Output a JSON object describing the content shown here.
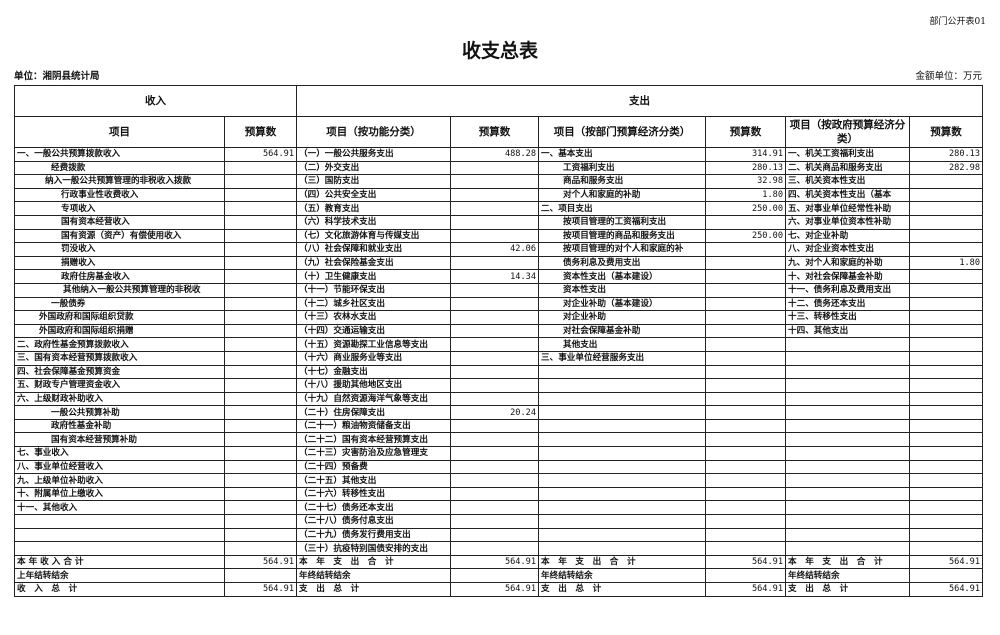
{
  "doc_code": "部门公开表01",
  "title": "收支总表",
  "unit": "单位：湘阴县统计局",
  "money_unit": "金额单位：万元",
  "header": {
    "income": "收入",
    "expense": "支出",
    "cols": [
      "项目",
      "预算数",
      "项目（按功能分类）",
      "预算数",
      "项目（按部门预算经济分类）",
      "预算数",
      "项目（按政府预算经济分类）",
      "预算数"
    ]
  },
  "rows": [
    [
      "一、一般公共预算拨款收入",
      "564.91",
      "（一）一般公共服务支出",
      "488.28",
      "一、基本支出",
      "314.91",
      "一、机关工资福利支出",
      "280.13"
    ],
    [
      "经费拨款",
      "",
      "（二）外交支出",
      "",
      "工资福利支出",
      "280.13",
      "二、机关商品和服务支出",
      "282.98"
    ],
    [
      "纳入一般公共预算管理的非税收入拨款",
      "",
      "（三）国防支出",
      "",
      "商品和服务支出",
      "32.98",
      "三、机关资本性支出",
      ""
    ],
    [
      "行政事业性收费收入",
      "",
      "（四）公共安全支出",
      "",
      "对个人和家庭的补助",
      "1.80",
      "四、机关资本性支出（基本",
      ""
    ],
    [
      "专项收入",
      "",
      "（五）教育支出",
      "",
      "二、项目支出",
      "250.00",
      "五、对事业单位经常性补助",
      ""
    ],
    [
      "国有资本经营收入",
      "",
      "（六）科学技术支出",
      "",
      "按项目管理的工资福利支出",
      "",
      "六、对事业单位资本性补助",
      ""
    ],
    [
      "国有资源（资产）有偿使用收入",
      "",
      "（七）文化旅游体育与传媒支出",
      "",
      "按项目管理的商品和服务支出",
      "250.00",
      "七、对企业补助",
      ""
    ],
    [
      "罚没收入",
      "",
      "（八）社会保障和就业支出",
      "42.06",
      "按项目管理的对个人和家庭的补",
      "",
      "八、对企业资本性支出",
      ""
    ],
    [
      "捐赠收入",
      "",
      "（九）社会保险基金支出",
      "",
      "债务利息及费用支出",
      "",
      "九、对个人和家庭的补助",
      "1.80"
    ],
    [
      "政府住房基金收入",
      "",
      "（十）卫生健康支出",
      "14.34",
      "资本性支出（基本建设）",
      "",
      "十、对社会保障基金补助",
      ""
    ],
    [
      "其他纳入一般公共预算管理的非税收",
      "",
      "（十一）节能环保支出",
      "",
      "资本性支出",
      "",
      "十一、债务利息及费用支出",
      ""
    ],
    [
      "一般债券",
      "",
      "（十二）城乡社区支出",
      "",
      "对企业补助（基本建设）",
      "",
      "十二、债务还本支出",
      ""
    ],
    [
      "外国政府和国际组织贷款",
      "",
      "（十三）农林水支出",
      "",
      "对企业补助",
      "",
      "十三、转移性支出",
      ""
    ],
    [
      "外国政府和国际组织捐赠",
      "",
      "（十四）交通运输支出",
      "",
      "对社会保障基金补助",
      "",
      "十四、其他支出",
      ""
    ],
    [
      "二、政府性基金预算拨款收入",
      "",
      "（十五）资源勘探工业信息等支出",
      "",
      "其他支出",
      "",
      "",
      ""
    ],
    [
      "三、国有资本经营预算拨款收入",
      "",
      "（十六）商业服务业等支出",
      "",
      "三、事业单位经营服务支出",
      "",
      "",
      ""
    ],
    [
      "四、社会保障基金预算资金",
      "",
      "（十七）金融支出",
      "",
      "",
      "",
      "",
      ""
    ],
    [
      "五、财政专户管理资金收入",
      "",
      "（十八）援助其他地区支出",
      "",
      "",
      "",
      "",
      ""
    ],
    [
      "六、上级财政补助收入",
      "",
      "（十九）自然资源海洋气象等支出",
      "",
      "",
      "",
      "",
      ""
    ],
    [
      "一般公共预算补助",
      "",
      "（二十）住房保障支出",
      "20.24",
      "",
      "",
      "",
      ""
    ],
    [
      "政府性基金补助",
      "",
      "（二十一）粮油物资储备支出",
      "",
      "",
      "",
      "",
      ""
    ],
    [
      "国有资本经营预算补助",
      "",
      "（二十二）国有资本经营预算支出",
      "",
      "",
      "",
      "",
      ""
    ],
    [
      "七、事业收入",
      "",
      "（二十三）灾害防治及应急管理支",
      "",
      "",
      "",
      "",
      ""
    ],
    [
      "八、事业单位经营收入",
      "",
      "（二十四）预备费",
      "",
      "",
      "",
      "",
      ""
    ],
    [
      "九、上级单位补助收入",
      "",
      "（二十五）其他支出",
      "",
      "",
      "",
      "",
      ""
    ],
    [
      "十、附属单位上缴收入",
      "",
      "（二十六）转移性支出",
      "",
      "",
      "",
      "",
      ""
    ],
    [
      "十一、其他收入",
      "",
      "（二十七）债务还本支出",
      "",
      "",
      "",
      "",
      ""
    ],
    [
      "",
      "",
      "（二十八）债务付息支出",
      "",
      "",
      "",
      "",
      ""
    ],
    [
      "",
      "",
      "（二十九）债务发行费用支出",
      "",
      "",
      "",
      "",
      ""
    ],
    [
      "",
      "",
      "（三十）抗疫特别国债安排的支出",
      "",
      "",
      "",
      "",
      ""
    ],
    [
      "本 年 收 入 合 计",
      "564.91",
      "本　年　支　出　合　计",
      "564.91",
      "本　年　支　出　合　计",
      "564.91",
      "本　年　支　出　合　计",
      "564.91"
    ],
    [
      "上年结转结余",
      "",
      "年终结转结余",
      "",
      "年终结转结余",
      "",
      "年终结转结余",
      ""
    ],
    [
      "收　入　总　计",
      "564.91",
      "支　出　总　计",
      "564.91",
      "支　出　总　计",
      "564.91",
      "支　出　总　计",
      "564.91"
    ]
  ]
}
